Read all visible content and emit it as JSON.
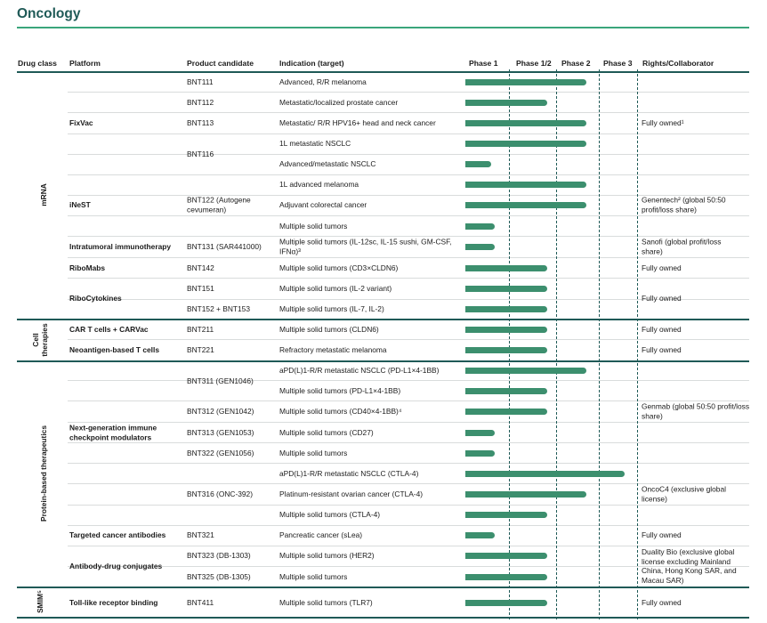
{
  "title": "Oncology",
  "headers": {
    "drug_class": "Drug class",
    "platform": "Platform",
    "product": "Product candidate",
    "indication": "Indication (target)",
    "phase1": "Phase 1",
    "phase12": "Phase 1/2",
    "phase2": "Phase 2",
    "phase3": "Phase 3",
    "rights": "Rights/Collaborator"
  },
  "categories": [
    {
      "label": "mRNA"
    },
    {
      "label": "Cell therapies"
    },
    {
      "label": "Protein-based therapeutics"
    },
    {
      "label": "SMIM⁵"
    }
  ],
  "platforms": [
    {
      "label": "FixVac"
    },
    {
      "label": "iNeST"
    },
    {
      "label": "Intratumoral immunotherapy"
    },
    {
      "label": "RiboMabs"
    },
    {
      "label": "RiboCytokines"
    },
    {
      "label": "CAR T cells + CARVac"
    },
    {
      "label": "Neoantigen-based T cells"
    },
    {
      "label": "Next-generation immune checkpoint modulators"
    },
    {
      "label": "Targeted cancer antibodies"
    },
    {
      "label": "Antibody-drug conjugates"
    },
    {
      "label": "Toll-like receptor binding"
    }
  ],
  "products": [
    {
      "label": "BNT111"
    },
    {
      "label": "BNT112"
    },
    {
      "label": "BNT113"
    },
    {
      "label": "BNT116"
    },
    {
      "label": "BNT122 (Autogene cevumeran)"
    },
    {
      "label": "BNT131 (SAR441000)"
    },
    {
      "label": "BNT142"
    },
    {
      "label": "BNT151"
    },
    {
      "label": "BNT152 + BNT153"
    },
    {
      "label": "BNT211"
    },
    {
      "label": "BNT221"
    },
    {
      "label": "BNT311 (GEN1046)"
    },
    {
      "label": "BNT312 (GEN1042)"
    },
    {
      "label": "BNT313 (GEN1053)"
    },
    {
      "label": "BNT322 (GEN1056)"
    },
    {
      "label": "BNT316 (ONC-392)"
    },
    {
      "label": "BNT321"
    },
    {
      "label": "BNT323 (DB-1303)"
    },
    {
      "label": "BNT325 (DB-1305)"
    },
    {
      "label": "BNT411"
    }
  ],
  "indications": [
    {
      "label": "Advanced, R/R melanoma",
      "phase": 2
    },
    {
      "label": "Metastatic/localized prostate cancer",
      "phase": 1.5
    },
    {
      "label": "Metastatic/ R/R HPV16+ head and neck cancer",
      "phase": 2
    },
    {
      "label": "1L metastatic NSCLC",
      "phase": 2
    },
    {
      "label": "Advanced/metastatic NSCLC",
      "phase": 0.5
    },
    {
      "label": "1L advanced melanoma",
      "phase": 2
    },
    {
      "label": "Adjuvant colorectal cancer",
      "phase": 2
    },
    {
      "label": "Multiple solid tumors",
      "phase": 0.6
    },
    {
      "label": "Multiple solid tumors (IL-12sc, IL-15 sushi, GM-CSF, IFNα)³",
      "phase": 0.6
    },
    {
      "label": "Multiple solid tumors (CD3×CLDN6)",
      "phase": 1.5
    },
    {
      "label": "Multiple solid tumors (IL-2 variant)",
      "phase": 1.5
    },
    {
      "label": "Multiple solid tumors (IL-7, IL-2)",
      "phase": 1.5
    },
    {
      "label": "Multiple solid tumors (CLDN6)",
      "phase": 1.5
    },
    {
      "label": "Refractory metastatic melanoma",
      "phase": 1.5
    },
    {
      "label": "aPD(L)1-R/R metastatic NSCLC (PD-L1×4-1BB)",
      "phase": 2
    },
    {
      "label": "Multiple solid tumors (PD-L1×4-1BB)",
      "phase": 1.5
    },
    {
      "label": "Multiple solid tumors (CD40×4-1BB)⁴",
      "phase": 1.5
    },
    {
      "label": "Multiple solid tumors (CD27)",
      "phase": 0.6
    },
    {
      "label": "Multiple solid tumors",
      "phase": 0.6
    },
    {
      "label": "aPD(L)1-R/R metastatic NSCLC (CTLA-4)",
      "phase": 3
    },
    {
      "label": "Platinum-resistant ovarian cancer (CTLA-4)",
      "phase": 2
    },
    {
      "label": "Multiple solid tumors (CTLA-4)",
      "phase": 1.5
    },
    {
      "label": "Pancreatic cancer (sLea)",
      "phase": 0.6
    },
    {
      "label": "Multiple solid tumors (HER2)",
      "phase": 1.5
    },
    {
      "label": "Multiple solid tumors",
      "phase": 1.5
    },
    {
      "label": "Multiple solid tumors (TLR7)",
      "phase": 1.5
    }
  ],
  "rights": [
    {
      "label": "Fully owned¹"
    },
    {
      "label": "Genentech² (global 50:50 profit/loss share)"
    },
    {
      "label": "Sanofi (global profit/loss share)"
    },
    {
      "label": "Fully owned"
    },
    {
      "label": "Fully owned"
    },
    {
      "label": "Fully owned"
    },
    {
      "label": "Fully owned"
    },
    {
      "label": "Genmab (global 50:50 profit/loss share)"
    },
    {
      "label": "OncoC4 (exclusive global license)"
    },
    {
      "label": "Fully owned"
    },
    {
      "label": "Duality Bio (exclusive global license excluding Mainland China, Hong Kong SAR, and Macau SAR)"
    },
    {
      "label": "Fully owned"
    }
  ],
  "colors": {
    "bar": "#3c8f6e",
    "accent": "#3aa57b",
    "dark": "#1f5a57"
  }
}
